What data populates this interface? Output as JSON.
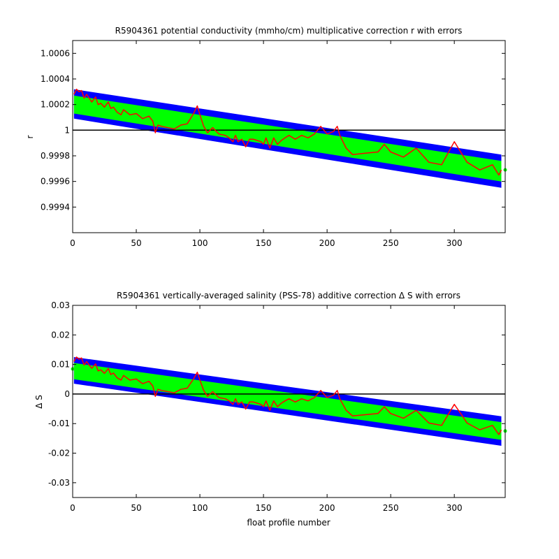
{
  "colors": {
    "outer_band": "#0000ff",
    "inner_band": "#00ff00",
    "series": "#ff0000",
    "reference": "#000000"
  },
  "chart_data": [
    {
      "type": "line",
      "title": "R5904361 potential conductivity (mmho/cm) multiplicative correction r with errors",
      "xlabel": "",
      "ylabel": "r",
      "xlim": [
        0,
        340
      ],
      "ylim": [
        0.9992,
        1.0007
      ],
      "xticks": [
        0,
        50,
        100,
        150,
        200,
        250,
        300
      ],
      "yticks": [
        0.9994,
        0.9996,
        0.9998,
        1,
        1.0002,
        1.0004,
        1.0006
      ],
      "ytick_labels": [
        "0.9994",
        "0.9996",
        "0.9998",
        "1",
        "1.0002",
        "1.0004",
        "1.0006"
      ],
      "reference_line": 1,
      "outer_band": {
        "x": [
          1,
          337
        ],
        "upper": [
          1.00032,
          0.99981
        ],
        "lower": [
          1.00009,
          0.99955
        ]
      },
      "inner_band": {
        "x": [
          1,
          337
        ],
        "upper": [
          1.00027,
          0.99976
        ],
        "lower": [
          1.00013,
          0.9996
        ]
      },
      "series": {
        "x": [
          1,
          3,
          5,
          7,
          9,
          11,
          13,
          15,
          18,
          20,
          22,
          25,
          28,
          30,
          32,
          35,
          38,
          40,
          45,
          50,
          55,
          60,
          63,
          65,
          67,
          70,
          75,
          80,
          85,
          90,
          95,
          98,
          100,
          103,
          106,
          110,
          115,
          120,
          123,
          126,
          128,
          130,
          133,
          136,
          139,
          142,
          145,
          148,
          150,
          152,
          155,
          158,
          161,
          164,
          167,
          170,
          175,
          180,
          185,
          190,
          195,
          200,
          205,
          208,
          210,
          215,
          220,
          230,
          240,
          245,
          250,
          260,
          270,
          280,
          290,
          300,
          305,
          310,
          320,
          330,
          335,
          337
        ],
        "y": [
          1.00028,
          1.00032,
          1.0003,
          1.00031,
          1.00025,
          1.00028,
          1.00025,
          1.00022,
          1.00026,
          1.0002,
          1.00021,
          1.00018,
          1.00022,
          1.00017,
          1.00018,
          1.00014,
          1.00012,
          1.00016,
          1.00012,
          1.00013,
          1.00009,
          1.00011,
          1.00007,
          0.99998,
          1.00004,
          1.00003,
          1.00002,
          1.00001,
          1.00004,
          1.00005,
          1.00013,
          1.00019,
          1.00012,
          1.00003,
          0.99998,
          1.00002,
          0.99997,
          0.99996,
          0.99994,
          0.99991,
          0.99996,
          0.99991,
          0.99993,
          0.99987,
          0.99993,
          0.99993,
          0.99992,
          0.99991,
          0.99989,
          0.99994,
          0.99986,
          0.99994,
          0.99989,
          0.99992,
          0.99994,
          0.99996,
          0.99993,
          0.99996,
          0.99994,
          0.99997,
          1.00003,
          0.99997,
          0.99999,
          1.00003,
          0.99996,
          0.99986,
          0.99981,
          0.99982,
          0.99983,
          0.99989,
          0.99983,
          0.99979,
          0.99986,
          0.99975,
          0.99973,
          0.99991,
          0.99983,
          0.99975,
          0.99969,
          0.99973,
          0.99965,
          0.99969
        ]
      },
      "edge_point_right": {
        "x": 340,
        "y": 0.99969
      }
    },
    {
      "type": "line",
      "title": "R5904361 vertically-averaged salinity (PSS-78) additive correction Δ S with errors",
      "xlabel": "float profile number",
      "ylabel": "Δ S",
      "xlim": [
        0,
        340
      ],
      "ylim": [
        -0.035,
        0.03
      ],
      "xticks": [
        0,
        50,
        100,
        150,
        200,
        250,
        300
      ],
      "yticks": [
        -0.03,
        -0.02,
        -0.01,
        0,
        0.01,
        0.02,
        0.03
      ],
      "ytick_labels": [
        "-0.03",
        "-0.02",
        "-0.01",
        "0",
        "0.01",
        "0.02",
        "0.03"
      ],
      "reference_line": 0,
      "outer_band": {
        "x": [
          1,
          337
        ],
        "upper": [
          0.0125,
          -0.0075
        ],
        "lower": [
          0.0035,
          -0.0175
        ]
      },
      "inner_band": {
        "x": [
          1,
          337
        ],
        "upper": [
          0.0105,
          -0.0095
        ],
        "lower": [
          0.005,
          -0.0155
        ]
      },
      "series": {
        "x": [
          1,
          3,
          5,
          7,
          9,
          11,
          13,
          15,
          18,
          20,
          22,
          25,
          28,
          30,
          32,
          35,
          38,
          40,
          45,
          50,
          55,
          60,
          63,
          65,
          67,
          70,
          75,
          80,
          85,
          90,
          95,
          98,
          100,
          103,
          106,
          110,
          115,
          120,
          123,
          126,
          128,
          130,
          133,
          136,
          139,
          142,
          145,
          148,
          150,
          152,
          155,
          158,
          161,
          164,
          167,
          170,
          175,
          180,
          185,
          190,
          195,
          200,
          205,
          208,
          210,
          215,
          220,
          230,
          240,
          245,
          250,
          260,
          270,
          280,
          290,
          300,
          305,
          310,
          320,
          330,
          335,
          337
        ],
        "y": [
          0.011,
          0.0125,
          0.0118,
          0.0122,
          0.0098,
          0.011,
          0.0098,
          0.0087,
          0.0102,
          0.0078,
          0.0082,
          0.007,
          0.0086,
          0.0066,
          0.0071,
          0.0055,
          0.0047,
          0.0063,
          0.0047,
          0.0051,
          0.0035,
          0.0043,
          0.0027,
          -0.0008,
          0.0016,
          0.0012,
          0.0008,
          0.0004,
          0.0016,
          0.002,
          0.0051,
          0.0074,
          0.0047,
          0.0012,
          -0.0008,
          0.0008,
          -0.0012,
          -0.0016,
          -0.0023,
          -0.0035,
          -0.0016,
          -0.0035,
          -0.0027,
          -0.0051,
          -0.0027,
          -0.0027,
          -0.0031,
          -0.0035,
          -0.0043,
          -0.0023,
          -0.0055,
          -0.0023,
          -0.0043,
          -0.0031,
          -0.0023,
          -0.0016,
          -0.0027,
          -0.0016,
          -0.0023,
          -0.0012,
          0.0012,
          -0.0012,
          -0.0004,
          0.0012,
          -0.0016,
          -0.0055,
          -0.0074,
          -0.007,
          -0.0066,
          -0.0043,
          -0.0066,
          -0.0082,
          -0.0055,
          -0.0098,
          -0.0106,
          -0.0035,
          -0.0066,
          -0.0098,
          -0.0121,
          -0.0106,
          -0.0137,
          -0.0121
        ]
      },
      "edge_point_left": {
        "x": 0,
        "y": 0.0085
      },
      "edge_point_right": {
        "x": 340,
        "y": -0.0125
      }
    }
  ]
}
